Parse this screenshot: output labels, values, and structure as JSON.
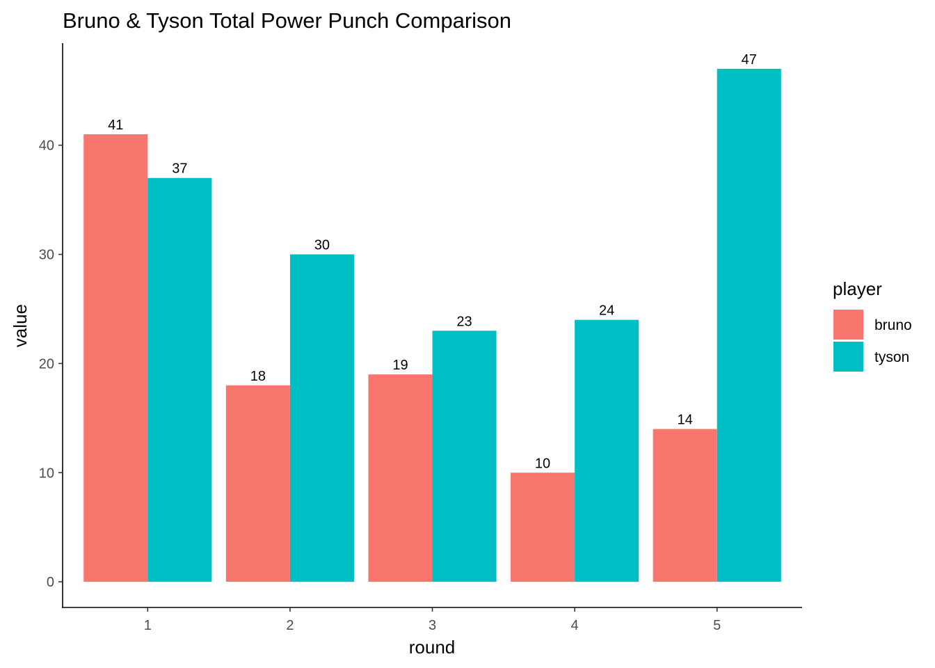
{
  "chart_data": {
    "type": "bar",
    "title": "Bruno & Tyson Total Power Punch Comparison",
    "xlabel": "round",
    "ylabel": "value",
    "categories": [
      "1",
      "2",
      "3",
      "4",
      "5"
    ],
    "series": [
      {
        "name": "bruno",
        "color": "#F8766D",
        "values": [
          41,
          18,
          19,
          10,
          14
        ]
      },
      {
        "name": "tyson",
        "color": "#00BFC4",
        "values": [
          37,
          30,
          23,
          24,
          47
        ]
      }
    ],
    "yticks": [
      0,
      10,
      20,
      30,
      40
    ],
    "ylim": [
      -2.35,
      49.35
    ],
    "grid": false,
    "legend": {
      "title": "player",
      "position": "right"
    }
  }
}
